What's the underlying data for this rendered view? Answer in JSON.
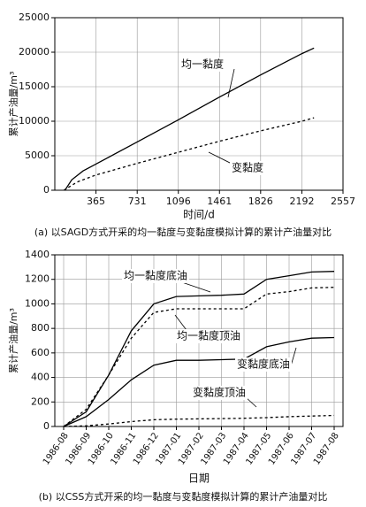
{
  "chart_data": [
    {
      "type": "line",
      "caption": "(a) 以SAGD方式开采的均一黏度与变黏度模拟计算的累计产油量对比",
      "xlabel": "时间/d",
      "ylabel": "累计产油量/m³",
      "xlim": [
        0,
        2557
      ],
      "xticks": [
        365,
        731,
        1096,
        1461,
        1826,
        2192,
        2557
      ],
      "ylim": [
        0,
        25000
      ],
      "yticks": [
        0,
        5000,
        10000,
        15000,
        20000,
        25000
      ],
      "grid": true,
      "series": [
        {
          "name": "均一黏度",
          "color": "#000000",
          "style": "solid",
          "x": [
            90,
            150,
            250,
            365,
            731,
            1096,
            1461,
            1826,
            2192,
            2300
          ],
          "values": [
            0,
            1500,
            2800,
            3800,
            7000,
            10200,
            13500,
            16700,
            19800,
            20600
          ]
        },
        {
          "name": "变黏度",
          "color": "#000000",
          "style": "dashed",
          "x": [
            80,
            200,
            365,
            731,
            1096,
            1461,
            1826,
            2192,
            2300
          ],
          "values": [
            0,
            1200,
            2200,
            3900,
            5500,
            7100,
            8600,
            10000,
            10500
          ]
        }
      ]
    },
    {
      "type": "line",
      "caption": "(b) 以CSS方式开采的均一黏度与变黏度模拟计算的累计产油量对比",
      "xlabel": "日期",
      "ylabel": "累计产油量/m³",
      "categories": [
        "1986-08",
        "1986-09",
        "1986-10",
        "1986-11",
        "1986-12",
        "1987-01",
        "1987-02",
        "1987-03",
        "1987-04",
        "1987-05",
        "1987-06",
        "1987-07",
        "1987-08"
      ],
      "ylim": [
        0,
        1400
      ],
      "yticks": [
        0,
        200,
        400,
        600,
        800,
        1000,
        1200,
        1400
      ],
      "grid": true,
      "series": [
        {
          "name": "均一黏度底油",
          "color": "#000000",
          "style": "solid",
          "values": [
            0,
            120,
            420,
            780,
            1000,
            1060,
            1065,
            1070,
            1080,
            1200,
            1230,
            1260,
            1265
          ]
        },
        {
          "name": "均一黏度顶油",
          "color": "#000000",
          "style": "dashed",
          "values": [
            0,
            140,
            420,
            720,
            930,
            960,
            960,
            960,
            960,
            1080,
            1100,
            1130,
            1135
          ]
        },
        {
          "name": "变黏度底油",
          "color": "#000000",
          "style": "solid",
          "values": [
            0,
            80,
            220,
            380,
            500,
            540,
            540,
            545,
            550,
            650,
            690,
            720,
            725
          ]
        },
        {
          "name": "变黏度顶油",
          "color": "#000000",
          "style": "dashed",
          "values": [
            0,
            5,
            20,
            40,
            55,
            60,
            62,
            64,
            67,
            72,
            80,
            85,
            90
          ]
        }
      ]
    }
  ]
}
